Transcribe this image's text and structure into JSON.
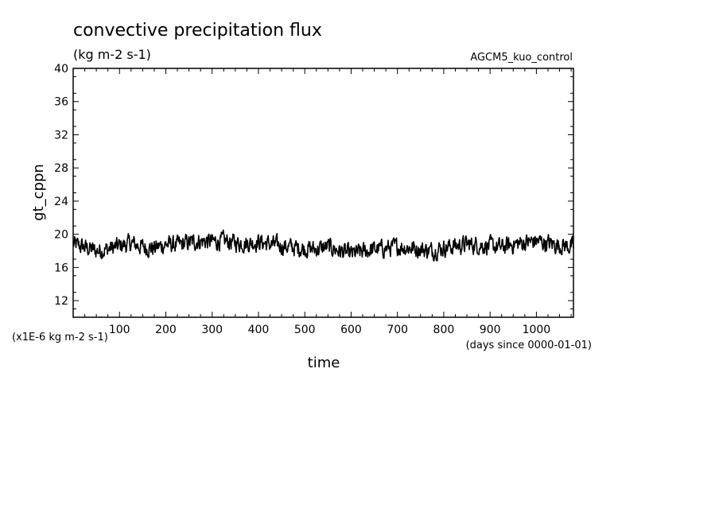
{
  "chart_data": {
    "type": "line",
    "title": "convective precipitation flux",
    "subtitle": "(kg m-2 s-1)",
    "experiment": "AGCM5_kuo_control",
    "xlabel": "time",
    "x_units": "(days since 0000-01-01)",
    "ylabel": "gt_cppn",
    "y_units": "(x1E-6 kg m-2 s-1)",
    "xlim": [
      0,
      1080
    ],
    "ylim": [
      10,
      40
    ],
    "x_ticks": [
      100,
      200,
      300,
      400,
      500,
      600,
      700,
      800,
      900,
      1000
    ],
    "x_tick_labels": [
      "100",
      "200",
      "300",
      "400",
      "500",
      "600",
      "700",
      "800",
      "900",
      "1000"
    ],
    "y_ticks": [
      12,
      16,
      20,
      24,
      28,
      32,
      36,
      40
    ],
    "y_tick_labels": [
      "12",
      "16",
      "20",
      "24",
      "28",
      "32",
      "36",
      "40"
    ],
    "grid": false,
    "series": [
      {
        "x": [
          0,
          25,
          50,
          75,
          100,
          125,
          150,
          175,
          200,
          225,
          250,
          275,
          300,
          325,
          350,
          375,
          400,
          425,
          450,
          475,
          500,
          525,
          550,
          575,
          600,
          625,
          650,
          675,
          700,
          725,
          750,
          775,
          800,
          825,
          850,
          875,
          900,
          925,
          950,
          975,
          1000,
          1025,
          1050,
          1080
        ],
        "y": [
          18.8,
          18.4,
          18.0,
          18.2,
          18.6,
          18.9,
          18.5,
          18.3,
          18.8,
          18.7,
          19.0,
          19.2,
          19.1,
          19.2,
          19.0,
          18.9,
          19.1,
          18.8,
          18.6,
          18.4,
          18.3,
          18.2,
          18.5,
          18.0,
          17.6,
          17.9,
          18.2,
          18.3,
          18.5,
          18.4,
          18.2,
          18.0,
          18.4,
          18.6,
          18.8,
          18.7,
          18.6,
          18.4,
          18.8,
          19.0,
          19.2,
          18.9,
          18.7,
          18.5
        ],
        "noise_amplitude": 0.9,
        "samples": 1080,
        "color": "#000000"
      }
    ]
  }
}
